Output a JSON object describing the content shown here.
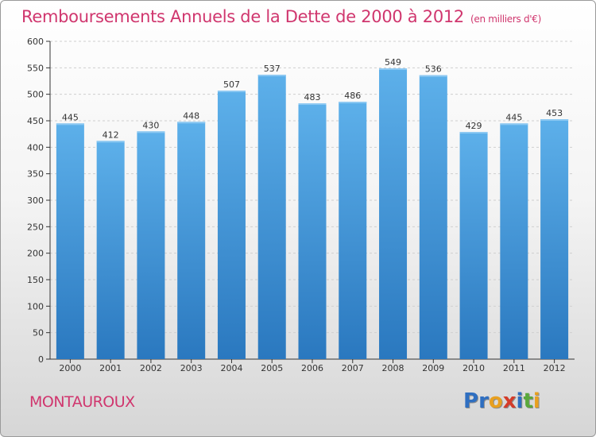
{
  "header": {
    "title": "Remboursements Annuels de la Dette de 2000 à 2012",
    "unit": "(en milliers d'€)"
  },
  "commune": "MONTAUROUX",
  "logo": {
    "letters": [
      "P",
      "r",
      "o",
      "x",
      "i",
      "t",
      "i"
    ],
    "colors": [
      "#2f6fc1",
      "#2f6fc1",
      "#e8a020",
      "#d43c2a",
      "#2f6fc1",
      "#5aa83c",
      "#e8a020"
    ]
  },
  "chart_data": {
    "type": "bar",
    "title": "Remboursements Annuels de la Dette de 2000 à 2012",
    "subtitle": "(en milliers d'€)",
    "xlabel": "",
    "ylabel": "",
    "categories": [
      "2000",
      "2001",
      "2002",
      "2003",
      "2004",
      "2005",
      "2006",
      "2007",
      "2008",
      "2009",
      "2010",
      "2011",
      "2012"
    ],
    "values": [
      445,
      412,
      430,
      448,
      507,
      537,
      483,
      486,
      549,
      536,
      429,
      445,
      453
    ],
    "ylim": [
      0,
      600
    ],
    "yticks": [
      0,
      50,
      100,
      150,
      200,
      250,
      300,
      350,
      400,
      450,
      500,
      550,
      600
    ],
    "grid": true,
    "legend": "none",
    "bar_color": "#4a9fe0"
  }
}
